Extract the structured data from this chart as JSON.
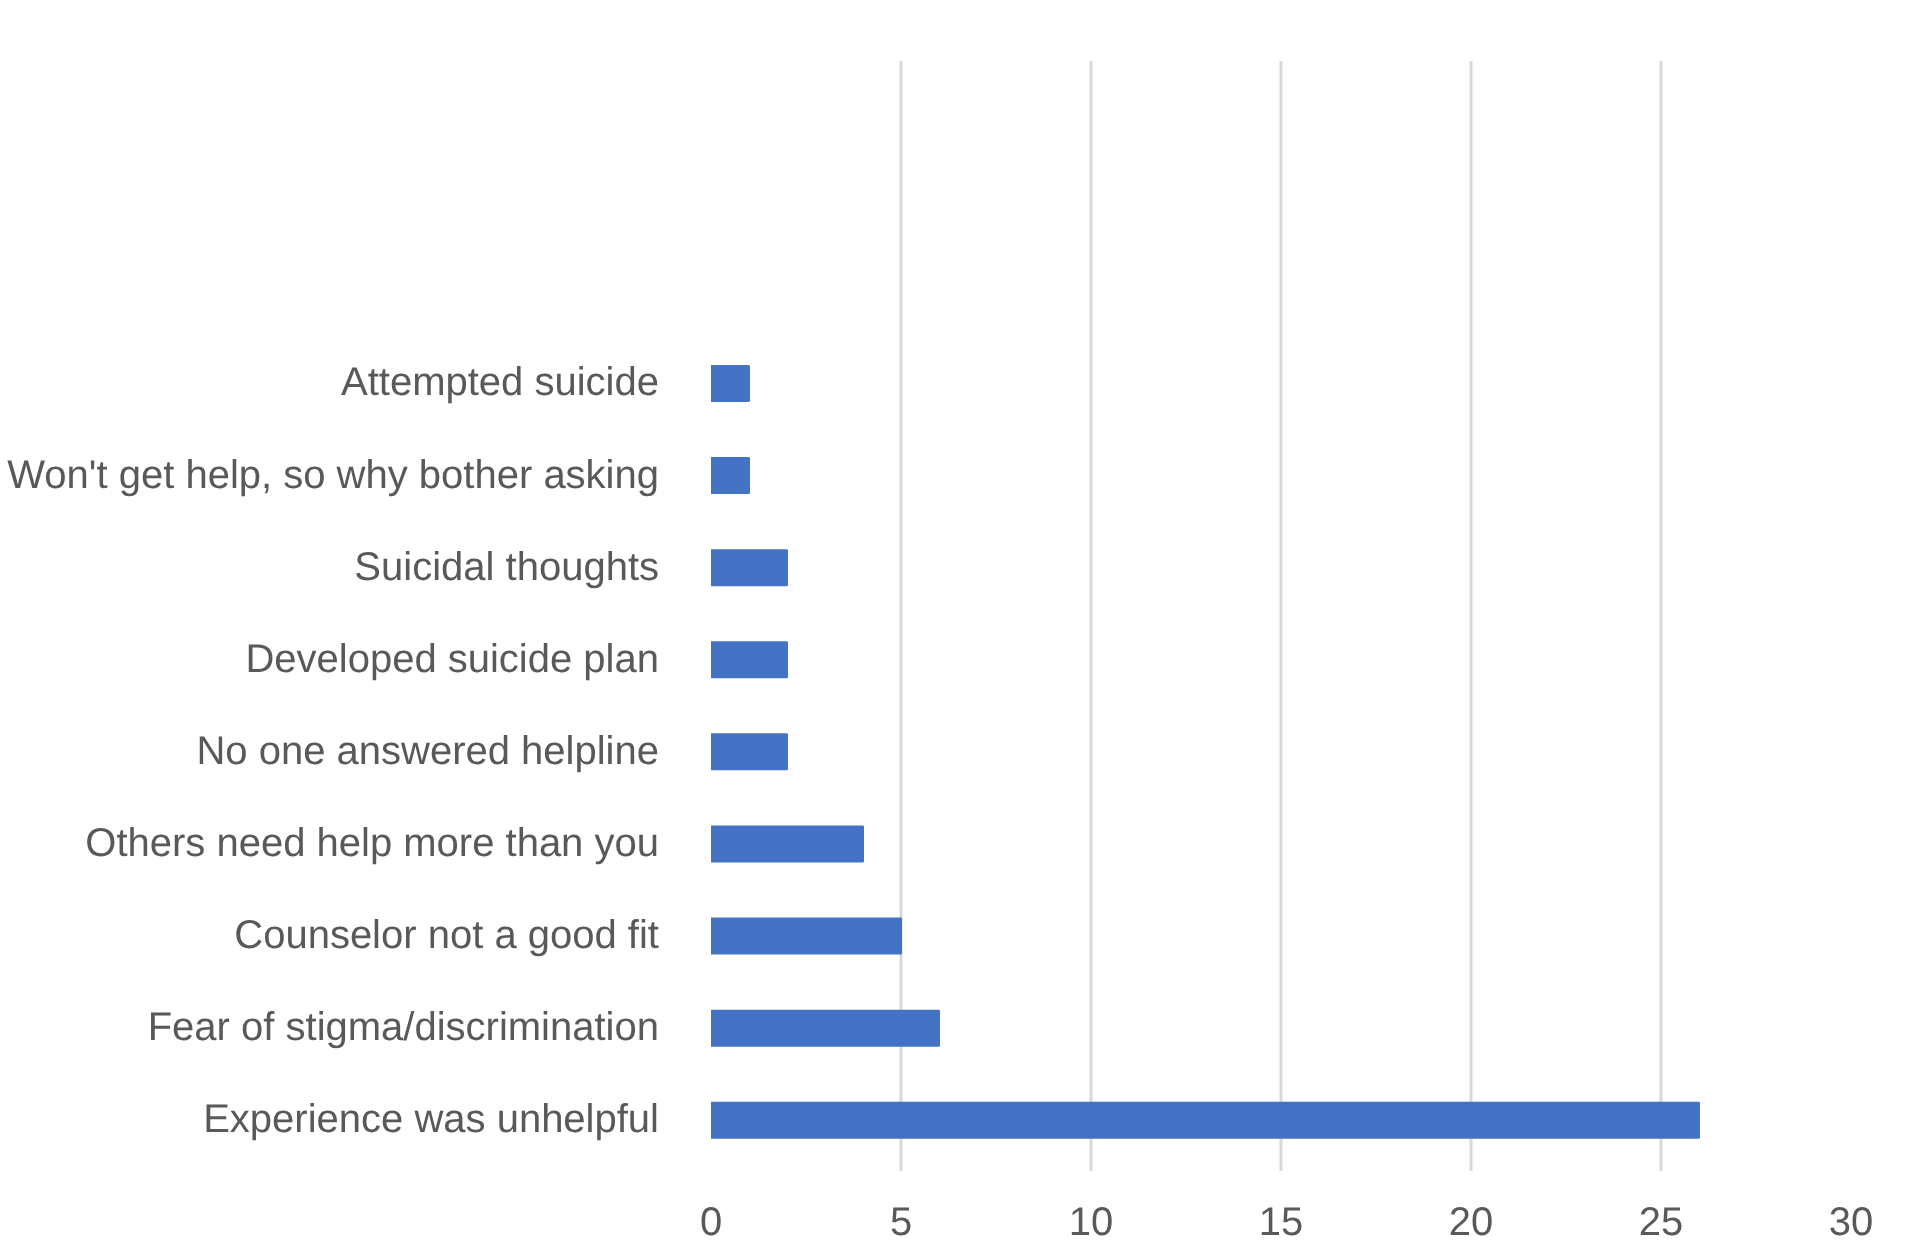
{
  "chart_data": {
    "type": "bar",
    "orientation": "horizontal",
    "categories": [
      "Attempted suicide",
      "Won't get help, so why bother asking",
      "Suicidal thoughts",
      "Developed suicide plan",
      "No one answered helpline",
      "Others need help more than you",
      "Counselor not a good fit",
      "Fear of stigma/discrimination",
      "Experience was unhelpful"
    ],
    "values": [
      1,
      1,
      2,
      2,
      2,
      4,
      5,
      6,
      26
    ],
    "color": "#4472c4",
    "xlim": [
      0,
      30
    ],
    "xticks": [
      0,
      5,
      10,
      15,
      20,
      25,
      30
    ],
    "grid": "x"
  }
}
